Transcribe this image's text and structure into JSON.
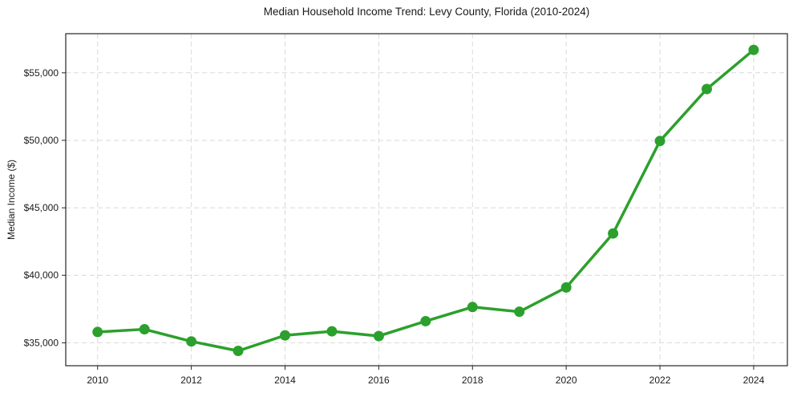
{
  "page": {
    "background": "#ffffff"
  },
  "chart_data": {
    "type": "line",
    "title": "Median Household Income Trend: Levy County, Florida (2010-2024)",
    "xlabel": "",
    "ylabel": "Median Income ($)",
    "x": [
      2010,
      2011,
      2012,
      2013,
      2014,
      2015,
      2016,
      2017,
      2018,
      2019,
      2020,
      2021,
      2022,
      2023,
      2024
    ],
    "values": [
      35800,
      36000,
      35100,
      34400,
      35550,
      35850,
      35500,
      36600,
      37650,
      37300,
      39100,
      43100,
      49950,
      53800,
      56700
    ],
    "xticks": [
      2010,
      2012,
      2014,
      2016,
      2018,
      2020,
      2022,
      2024
    ],
    "xtick_labels": [
      "2010",
      "2012",
      "2014",
      "2016",
      "2018",
      "2020",
      "2022",
      "2024"
    ],
    "yticks": [
      35000,
      40000,
      45000,
      50000,
      55000
    ],
    "ytick_labels": [
      "$35,000",
      "$40,000",
      "$45,000",
      "$50,000",
      "$55,000"
    ],
    "xlim": [
      2009.32,
      2024.72
    ],
    "ylim": [
      33300,
      57900
    ],
    "grid": true,
    "grid_style": "dashed",
    "legend": "none",
    "line_color": "#2ca02c",
    "marker": "circle",
    "grid_color": "#d9d9d9",
    "frame_color": "#262626",
    "text_color": "#1a1a1a"
  }
}
